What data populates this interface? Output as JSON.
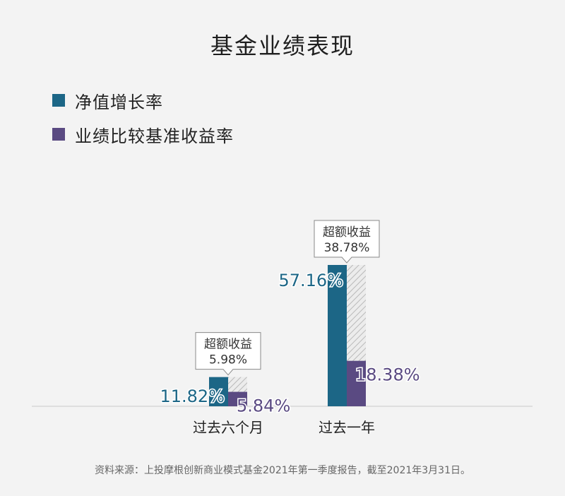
{
  "title": "基金业绩表现",
  "legend": [
    {
      "label": "净值增长率",
      "color": "#1c6686"
    },
    {
      "label": "业绩比较基准收益率",
      "color": "#5a4a82"
    }
  ],
  "chart_data": {
    "type": "bar",
    "categories": [
      "过去六个月",
      "过去一年"
    ],
    "series": [
      {
        "name": "净值增长率",
        "values": [
          11.82,
          57.16
        ],
        "labels": [
          "11.82%",
          "57.16%"
        ],
        "color": "#1c6686"
      },
      {
        "name": "业绩比较基准收益率",
        "values": [
          5.84,
          18.38
        ],
        "labels": [
          "5.84%",
          "18.38%"
        ],
        "color": "#5a4a82"
      }
    ],
    "excess": {
      "title": "超额收益",
      "values": [
        5.98,
        38.78
      ],
      "labels": [
        "5.98%",
        "38.78%"
      ]
    },
    "ylim": [
      0,
      57.16
    ],
    "grid": false,
    "legend_position": "top-left"
  },
  "source": "资料来源：上投摩根创新商业模式基金2021年第一季度报告，截至2021年3月31日。"
}
